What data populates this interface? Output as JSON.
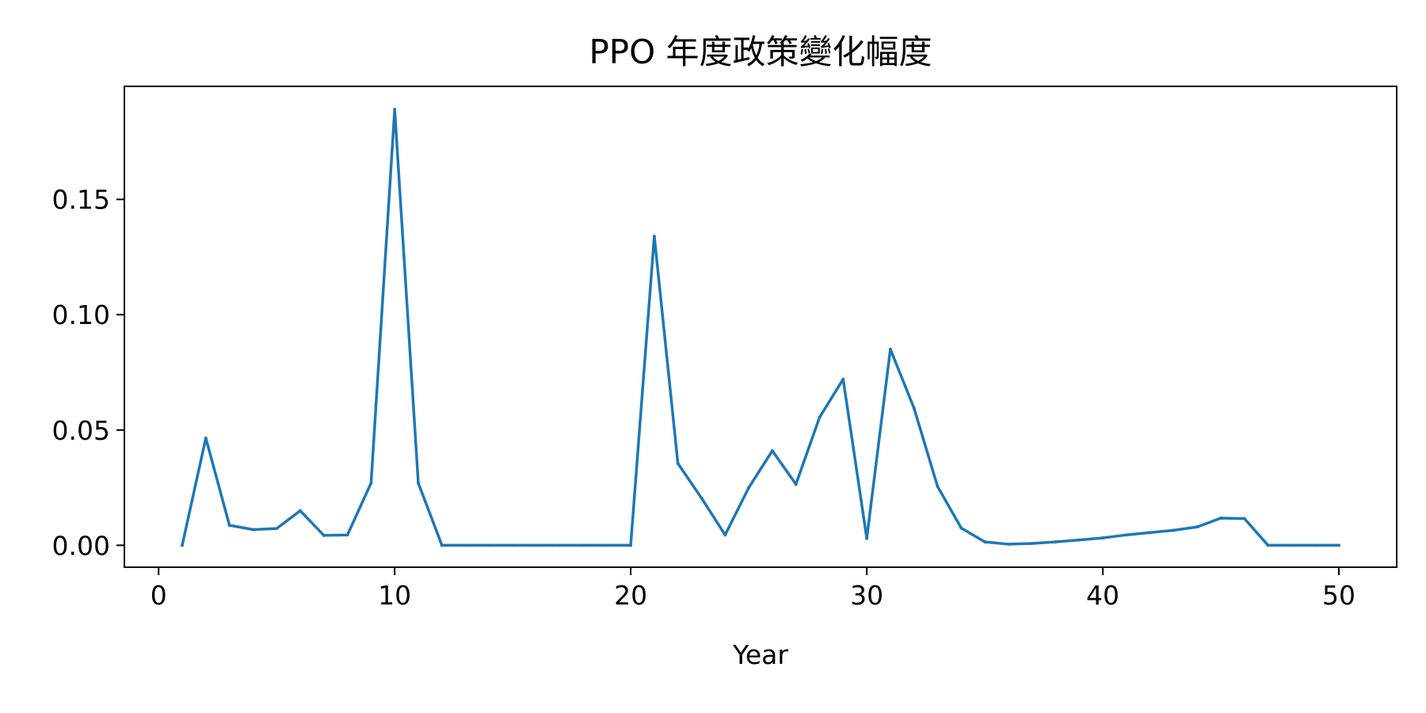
{
  "chart_data": {
    "type": "line",
    "title": "PPO 年度政策變化幅度",
    "xlabel": "Year",
    "ylabel": "",
    "xlim": [
      -1.45,
      52.45
    ],
    "ylim": [
      -0.0095,
      0.199
    ],
    "xticks": [
      0,
      10,
      20,
      30,
      40,
      50
    ],
    "xtick_labels": [
      "0",
      "10",
      "20",
      "30",
      "40",
      "50"
    ],
    "yticks": [
      0.0,
      0.05,
      0.1,
      0.15
    ],
    "ytick_labels": [
      "0.00",
      "0.05",
      "0.10",
      "0.15"
    ],
    "grid": false,
    "line_color": "#1f77b4",
    "series": [
      {
        "x": [
          1,
          2,
          3,
          4,
          5,
          6,
          7,
          8,
          9,
          10,
          11,
          12,
          13,
          14,
          15,
          16,
          17,
          18,
          19,
          20,
          21,
          22,
          23,
          24,
          25,
          26,
          27,
          28,
          29,
          30,
          31,
          32,
          33,
          34,
          35,
          36,
          37,
          38,
          39,
          40,
          41,
          42,
          43,
          44,
          45,
          46,
          47,
          48,
          49,
          50
        ],
        "values": [
          0.0,
          0.0465,
          0.0087,
          0.0068,
          0.0073,
          0.015,
          0.0043,
          0.0045,
          0.027,
          0.189,
          0.027,
          0.0,
          0.0,
          0.0,
          0.0,
          0.0,
          0.0,
          0.0,
          0.0,
          0.0,
          0.134,
          0.0355,
          0.0205,
          0.0045,
          0.025,
          0.041,
          0.0265,
          0.0555,
          0.072,
          0.003,
          0.085,
          0.0595,
          0.0255,
          0.0075,
          0.0015,
          0.0005,
          0.0008,
          0.0015,
          0.0023,
          0.0032,
          0.0045,
          0.0055,
          0.0065,
          0.008,
          0.0118,
          0.0116,
          0.0,
          0.0,
          0.0,
          0.0
        ]
      }
    ]
  }
}
